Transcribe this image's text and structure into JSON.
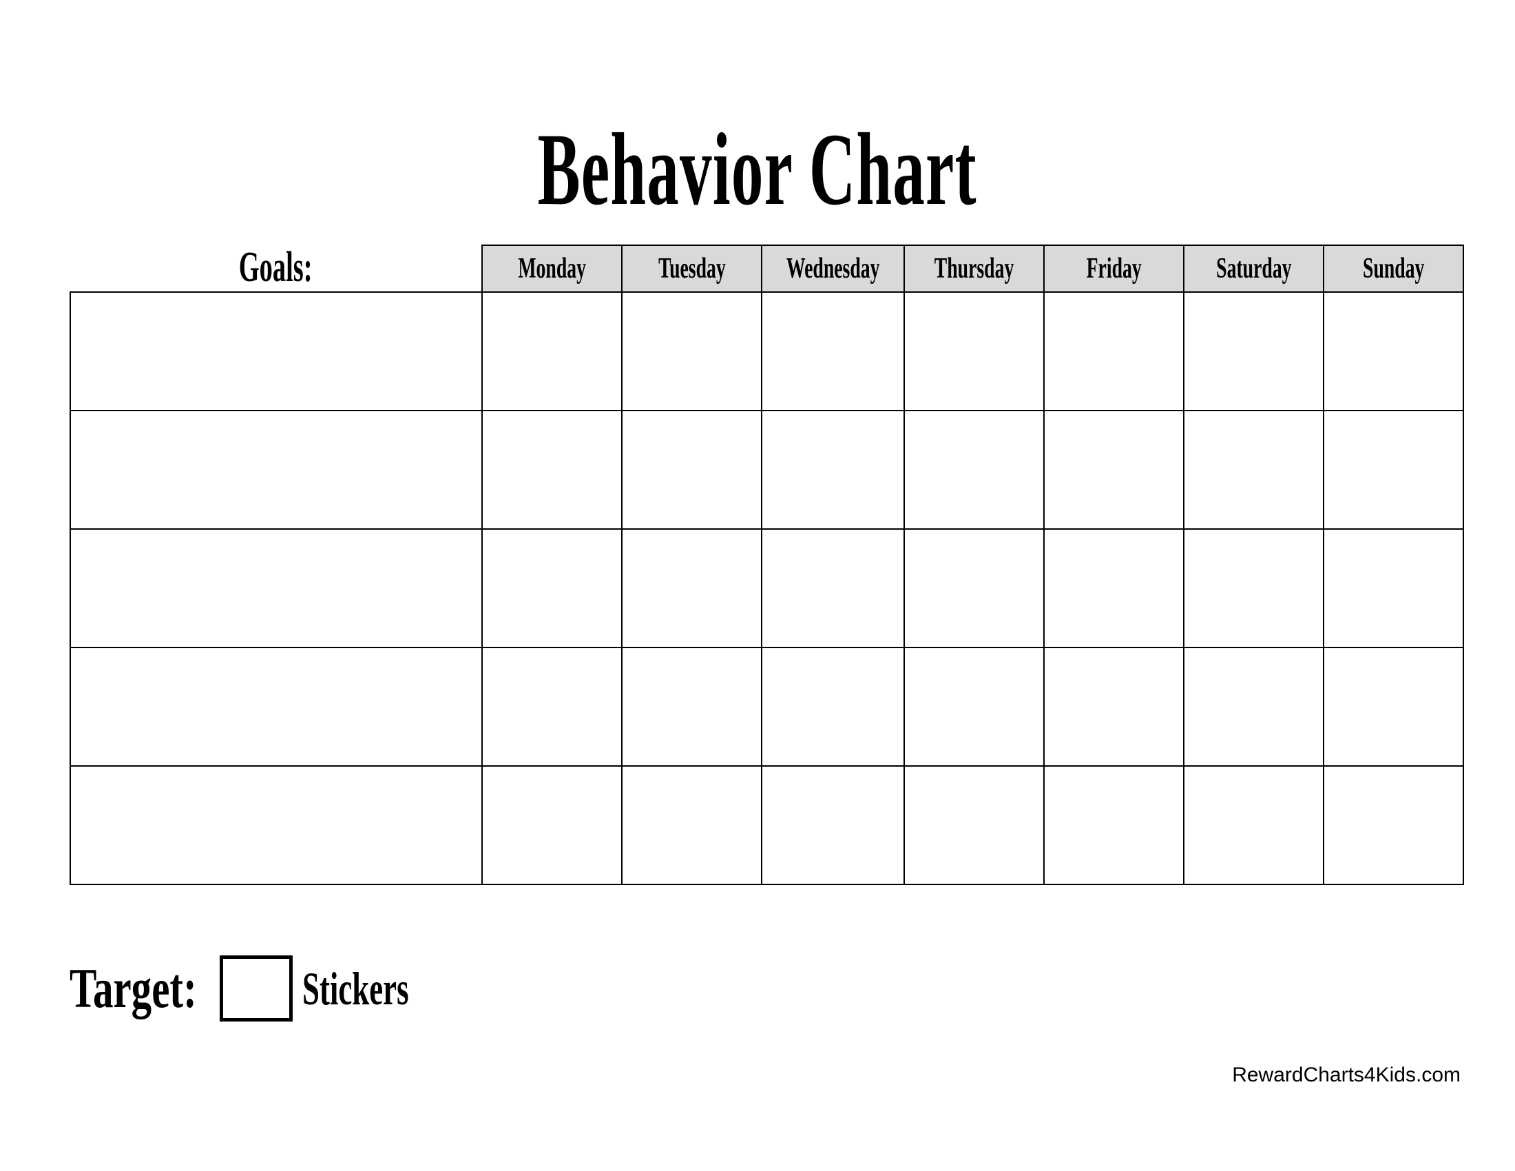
{
  "title": "Behavior Chart",
  "goals_label": "Goals:",
  "days": [
    "Monday",
    "Tuesday",
    "Wednesday",
    "Thursday",
    "Friday",
    "Saturday",
    "Sunday"
  ],
  "row_count": 5,
  "header_fill": "#d9d9d9",
  "target": {
    "label": "Target:",
    "suffix": "Stickers"
  },
  "footer": "RewardCharts4Kids.com"
}
